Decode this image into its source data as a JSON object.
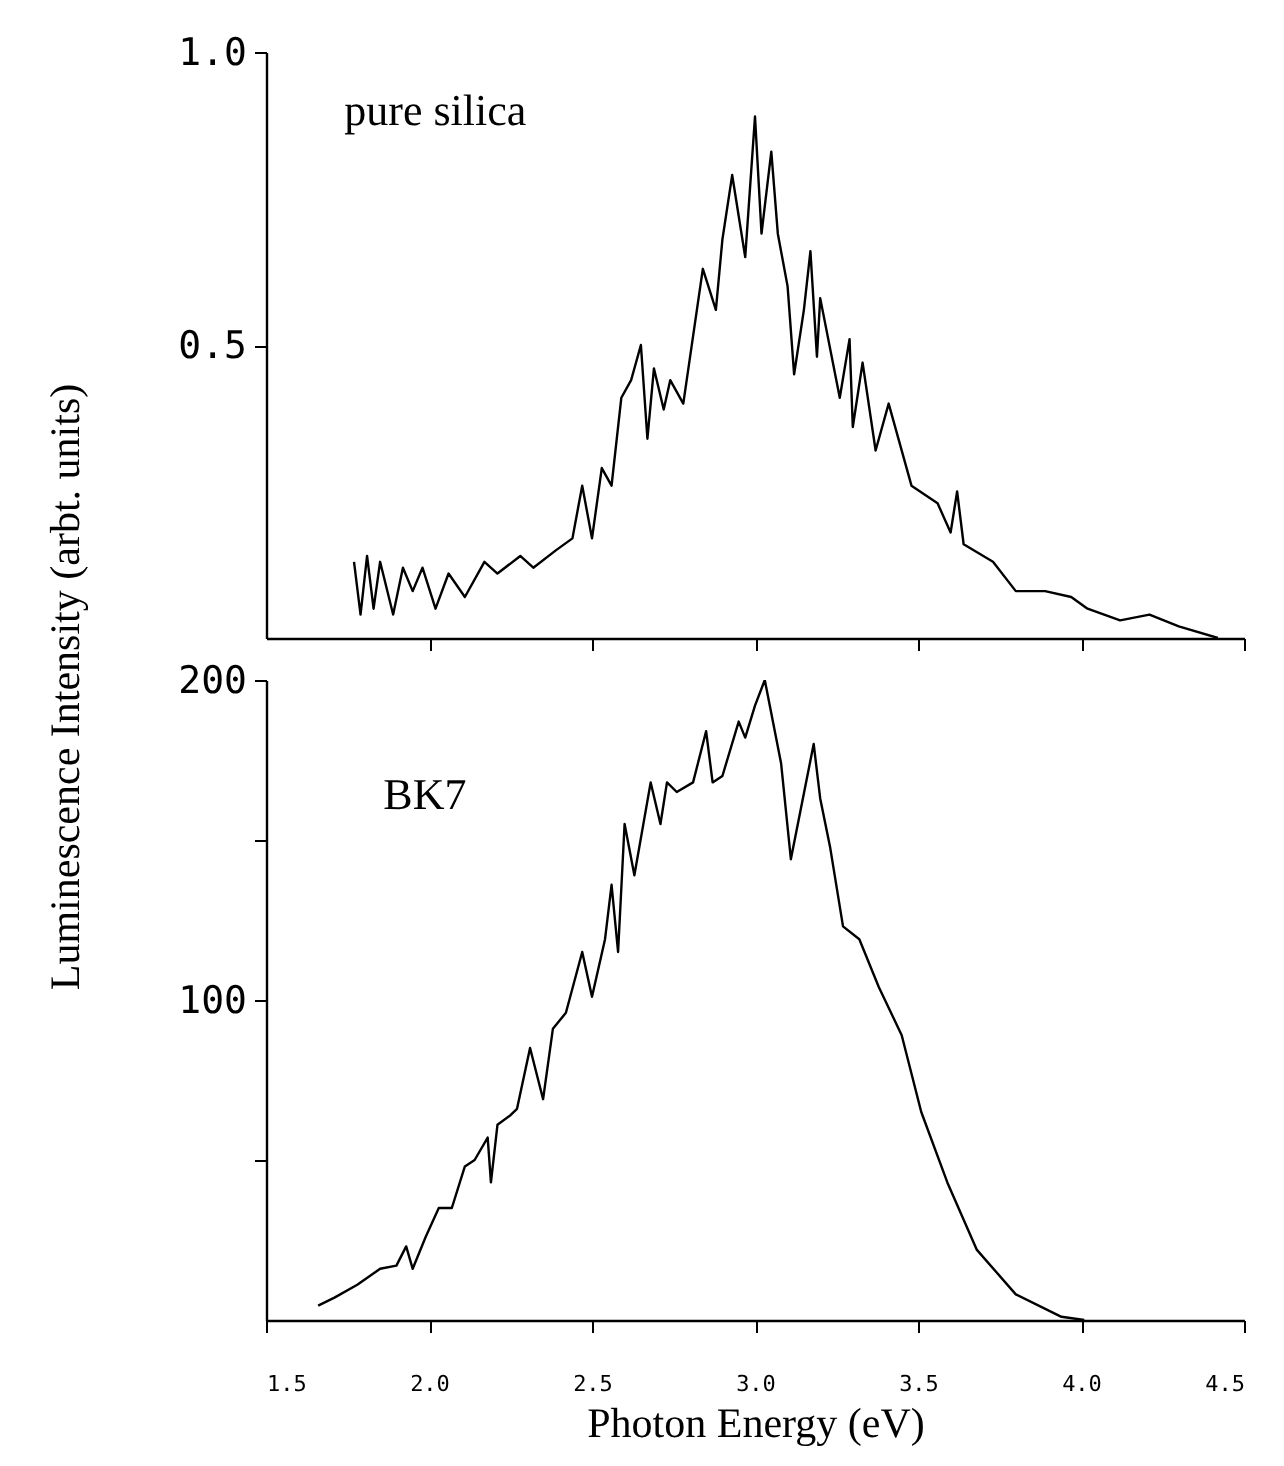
{
  "chart_data": [
    {
      "type": "line",
      "ylabel": "Luminescence Intensity (arbt. units)",
      "xlim": [
        1.5,
        4.5
      ],
      "xticks": [
        2,
        2.5,
        3,
        3.5,
        4,
        4.5
      ],
      "ylim": [
        0,
        1.0
      ],
      "yticks": [
        {
          "value": 0.5,
          "label": "0.5"
        },
        {
          "value": 1,
          "label": "1.0"
        }
      ],
      "tick_labels": "y",
      "series": [
        {
          "name": "pure silica",
          "color": "#000000",
          "x": [
            1.77,
            1.79,
            1.81,
            1.83,
            1.85,
            1.89,
            1.92,
            1.95,
            1.98,
            2.02,
            2.06,
            2.11,
            2.17,
            2.21,
            2.28,
            2.32,
            2.39,
            2.44,
            2.47,
            2.5,
            2.53,
            2.56,
            2.59,
            2.62,
            2.65,
            2.67,
            2.69,
            2.72,
            2.74,
            2.78,
            2.84,
            2.88,
            2.9,
            2.93,
            2.97,
            3.0,
            3.02,
            3.05,
            3.07,
            3.1,
            3.12,
            3.15,
            3.17,
            3.19,
            3.2,
            3.26,
            3.29,
            3.3,
            3.33,
            3.37,
            3.41,
            3.48,
            3.56,
            3.6,
            3.62,
            3.64,
            3.73,
            3.8,
            3.89,
            3.97,
            4.02,
            4.12,
            4.21,
            4.3,
            4.42
          ],
          "values": [
            0.13,
            0.04,
            0.14,
            0.05,
            0.13,
            0.04,
            0.12,
            0.08,
            0.12,
            0.05,
            0.11,
            0.07,
            0.13,
            0.11,
            0.14,
            0.12,
            0.15,
            0.17,
            0.26,
            0.17,
            0.29,
            0.26,
            0.41,
            0.44,
            0.5,
            0.34,
            0.46,
            0.39,
            0.44,
            0.4,
            0.63,
            0.56,
            0.68,
            0.79,
            0.65,
            0.89,
            0.69,
            0.83,
            0.69,
            0.6,
            0.45,
            0.56,
            0.66,
            0.48,
            0.58,
            0.41,
            0.51,
            0.36,
            0.47,
            0.32,
            0.4,
            0.26,
            0.23,
            0.18,
            0.25,
            0.16,
            0.13,
            0.08,
            0.08,
            0.07,
            0.05,
            0.03,
            0.04,
            0.02,
            0.0
          ]
        }
      ]
    },
    {
      "type": "line",
      "xlabel": "Photon Energy (eV)",
      "xlim": [
        1.5,
        4.5
      ],
      "xticks": [
        {
          "value": 1.5,
          "label": "1.5"
        },
        {
          "value": 2,
          "label": "2.0"
        },
        {
          "value": 2.5,
          "label": "2.5"
        },
        {
          "value": 3,
          "label": "3.0"
        },
        {
          "value": 3.5,
          "label": "3.5"
        },
        {
          "value": 4,
          "label": "4.0"
        },
        {
          "value": 4.5,
          "label": "4.5"
        }
      ],
      "ylim": [
        0,
        200
      ],
      "yticks": [
        {
          "value": 50,
          "label": null
        },
        100,
        {
          "value": 150,
          "label": null
        },
        200
      ],
      "series": [
        {
          "name": "BK7",
          "color": "#000000",
          "x": [
            1.66,
            1.71,
            1.78,
            1.85,
            1.9,
            1.93,
            1.95,
            1.99,
            2.03,
            2.07,
            2.11,
            2.14,
            2.18,
            2.19,
            2.21,
            2.25,
            2.27,
            2.31,
            2.35,
            2.38,
            2.42,
            2.47,
            2.5,
            2.54,
            2.56,
            2.58,
            2.6,
            2.63,
            2.68,
            2.71,
            2.73,
            2.76,
            2.81,
            2.85,
            2.87,
            2.9,
            2.95,
            2.97,
            3.0,
            3.03,
            3.08,
            3.11,
            3.18,
            3.2,
            3.23,
            3.27,
            3.32,
            3.38,
            3.45,
            3.51,
            3.59,
            3.68,
            3.8,
            3.94,
            4.01
          ],
          "values": [
            4.5,
            7,
            11,
            16,
            17,
            23,
            16,
            26,
            35,
            35,
            48,
            50,
            57,
            43,
            61,
            64,
            66,
            85,
            69,
            91,
            96,
            115,
            101,
            119,
            136,
            115,
            155,
            139,
            168,
            155,
            168,
            165,
            168,
            184,
            168,
            170,
            187,
            182,
            192,
            200,
            174,
            144,
            180,
            163,
            148,
            123,
            119,
            104,
            89,
            65,
            43,
            22,
            8,
            1,
            0
          ]
        }
      ]
    }
  ]
}
